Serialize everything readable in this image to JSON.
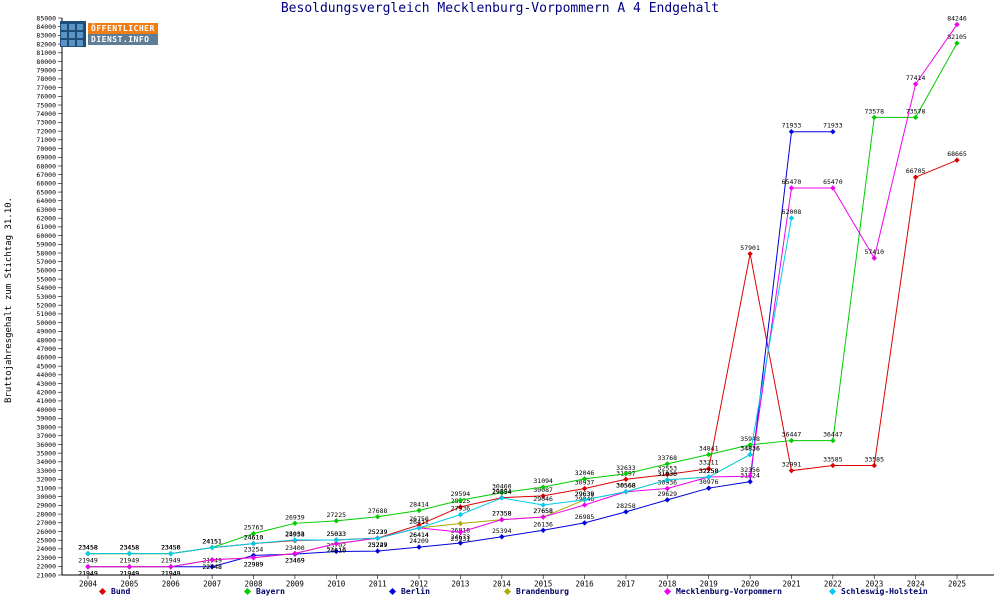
{
  "logo": {
    "line1": "ÖFFENTLICHER",
    "line2": "DIENST.INFO"
  },
  "chart_data": {
    "type": "line",
    "title": "Besoldungsvergleich Mecklenburg-Vorpommern A 4 Endgehalt",
    "ylabel": "Bruttojahresgehalt zum Stichtag 31.10.",
    "xlabel": "",
    "x": [
      2004,
      2005,
      2006,
      2007,
      2008,
      2009,
      2010,
      2011,
      2012,
      2013,
      2014,
      2015,
      2016,
      2017,
      2018,
      2019,
      2020,
      2021,
      2022,
      2023,
      2024,
      2025
    ],
    "ylim": [
      21000,
      85000
    ],
    "ytick_step": 1000,
    "grid": false,
    "legend_position": "bottom",
    "series": [
      {
        "name": "Bund",
        "color": "#dd0000",
        "values": [
          23458,
          23458,
          23450,
          24151,
          24610,
          24958,
          25033,
          25239,
          26750,
          28825,
          29884,
          30087,
          30937,
          31997,
          32553,
          33211,
          57901,
          32991,
          33585,
          33585,
          66705,
          68665
        ]
      },
      {
        "name": "Bayern",
        "color": "#00cc00",
        "values": [
          23458,
          23458,
          23450,
          24151,
          25763,
          26939,
          27225,
          27688,
          28414,
          29594,
          30460,
          31094,
          32046,
          32633,
          33768,
          34841,
          35948,
          36447,
          36447,
          73578,
          73578,
          82105
        ]
      },
      {
        "name": "Berlin",
        "color": "#0000dd",
        "values": [
          21949,
          21949,
          21949,
          21949,
          23254,
          23400,
          23702,
          23747,
          24209,
          24673,
          25394,
          26136,
          26985,
          28258,
          29629,
          30976,
          31724,
          71933,
          71933,
          null,
          null,
          null
        ]
      },
      {
        "name": "Brandenburg",
        "color": "#aaaa00",
        "values": [
          21949,
          21949,
          21949,
          22748,
          22989,
          23469,
          24610,
          25229,
          26414,
          26918,
          27358,
          27658,
          29639,
          30568,
          31930,
          32258,
          34836,
          null,
          null,
          null,
          null,
          null
        ]
      },
      {
        "name": "Mecklenburg-Vorpommern",
        "color": "#ee00ee",
        "values": [
          21949,
          21949,
          21949,
          22748,
          22989,
          23469,
          24610,
          25229,
          26414,
          25931,
          27358,
          27658,
          29046,
          30568,
          30936,
          32258,
          32356,
          65470,
          65470,
          57410,
          77414,
          84246
        ]
      },
      {
        "name": "Schleswig-Holstein",
        "color": "#00ccee",
        "values": [
          23458,
          23458,
          23450,
          24151,
          24610,
          25033,
          25023,
          25229,
          26411,
          27936,
          29854,
          29046,
          29638,
          30568,
          31930,
          32258,
          34836,
          62008,
          null,
          null,
          null,
          null
        ]
      }
    ]
  }
}
